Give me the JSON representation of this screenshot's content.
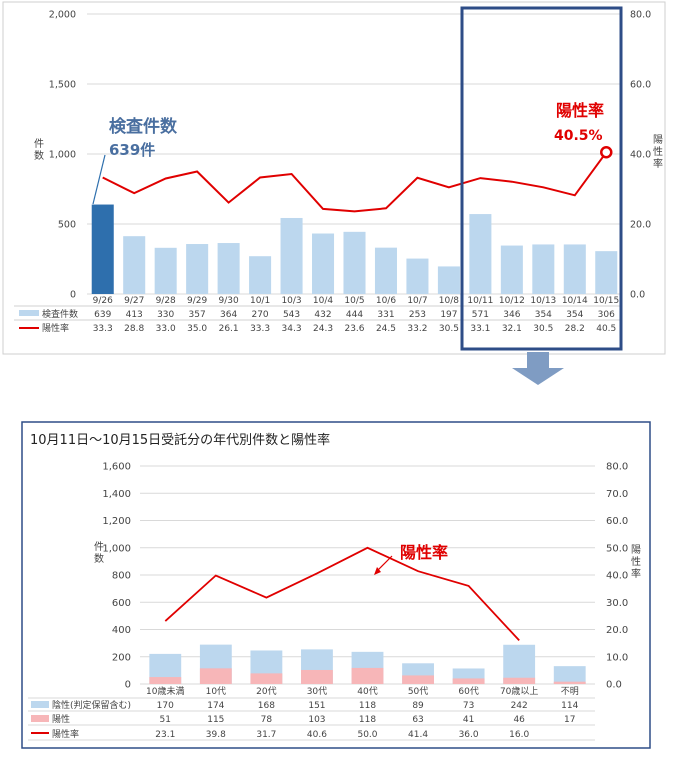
{
  "top": {
    "categories": [
      "9/26",
      "9/27",
      "9/28",
      "9/29",
      "9/30",
      "10/1",
      "10/3",
      "10/4",
      "10/5",
      "10/6",
      "10/7",
      "10/8",
      "10/11",
      "10/12",
      "10/13",
      "10/14",
      "10/15"
    ],
    "yticks_left": [
      "2,000",
      "1,500",
      "1,000",
      "500",
      "0"
    ],
    "yticks_right": [
      "80.0",
      "60.0",
      "40.0",
      "20.0",
      "0.0"
    ],
    "ylabel_left": "件数",
    "ylabel_right": "陽性率",
    "legend_bar": "検査件数",
    "legend_line": "陽性率",
    "row_counts": [
      "639",
      "413",
      "330",
      "357",
      "364",
      "270",
      "543",
      "432",
      "444",
      "331",
      "253",
      "197",
      "571",
      "346",
      "354",
      "354",
      "306"
    ],
    "row_rates": [
      "33.3",
      "28.8",
      "33.0",
      "35.0",
      "26.1",
      "33.3",
      "34.3",
      "24.3",
      "23.6",
      "24.5",
      "33.2",
      "30.5",
      "33.1",
      "32.1",
      "30.5",
      "28.2",
      "40.5"
    ],
    "callout_count_label": "検査件数",
    "callout_count_value": "639件",
    "callout_rate_label": "陽性率",
    "callout_rate_value": "40.5%"
  },
  "bottom": {
    "title": "10月11日～10月15日受託分の年代別件数と陽性率",
    "categories": [
      "10歳未満",
      "10代",
      "20代",
      "30代",
      "40代",
      "50代",
      "60代",
      "70歳以上",
      "不明"
    ],
    "yticks_left": [
      "1,600",
      "1,400",
      "1,200",
      "1,000",
      "800",
      "600",
      "400",
      "200",
      "0"
    ],
    "yticks_right": [
      "80.0",
      "70.0",
      "60.0",
      "50.0",
      "40.0",
      "30.0",
      "20.0",
      "10.0",
      "0.0"
    ],
    "ylabel_left": "件数",
    "ylabel_right": "陽性率",
    "legend_total": "陰性(判定保留含む)",
    "legend_positive": "陽性",
    "legend_rate": "陽性率",
    "row_negative": [
      "170",
      "174",
      "168",
      "151",
      "118",
      "89",
      "73",
      "242",
      "114"
    ],
    "row_positive": [
      "51",
      "115",
      "78",
      "103",
      "118",
      "63",
      "41",
      "46",
      "17"
    ],
    "row_rates": [
      "23.1",
      "39.8",
      "31.7",
      "40.6",
      "50.0",
      "41.4",
      "36.0",
      "16.0",
      ""
    ],
    "callout_rate_label": "陽性率"
  },
  "chart_data": [
    {
      "type": "bar",
      "categories": [
        "9/26",
        "9/27",
        "9/28",
        "9/29",
        "9/30",
        "10/1",
        "10/3",
        "10/4",
        "10/5",
        "10/6",
        "10/7",
        "10/8",
        "10/11",
        "10/12",
        "10/13",
        "10/14",
        "10/15"
      ],
      "series": [
        {
          "name": "検査件数",
          "values": [
            639,
            413,
            330,
            357,
            364,
            270,
            543,
            432,
            444,
            331,
            253,
            197,
            571,
            346,
            354,
            354,
            306
          ]
        },
        {
          "name": "陽性率",
          "values": [
            33.3,
            28.8,
            33.0,
            35.0,
            26.1,
            33.3,
            34.3,
            24.3,
            23.6,
            24.5,
            33.2,
            30.5,
            33.1,
            32.1,
            30.5,
            28.2,
            40.5
          ]
        }
      ],
      "ylim": [
        0,
        2000
      ],
      "y2lim": [
        0,
        80
      ],
      "colors": {
        "bar": "#bcd7ee",
        "highlight_bar": "#2e6fad",
        "line": "#e00000"
      }
    },
    {
      "type": "bar",
      "title": "10月11日～10月15日受託分の年代別件数と陽性率",
      "categories": [
        "10歳未満",
        "10代",
        "20代",
        "30代",
        "40代",
        "50代",
        "60代",
        "70歳以上",
        "不明"
      ],
      "series": [
        {
          "name": "陰性(判定保留含む)",
          "values": [
            170,
            174,
            168,
            151,
            118,
            89,
            73,
            242,
            114
          ]
        },
        {
          "name": "陽性",
          "values": [
            51,
            115,
            78,
            103,
            118,
            63,
            41,
            46,
            17
          ]
        },
        {
          "name": "陽性率",
          "values": [
            23.1,
            39.8,
            31.7,
            40.6,
            50.0,
            41.4,
            36.0,
            16.0,
            null
          ]
        }
      ],
      "ylim": [
        0,
        1600
      ],
      "y2lim": [
        0,
        80
      ],
      "colors": {
        "negative": "#bcd7ee",
        "positive": "#f7b6b8",
        "line": "#e00000",
        "border": "#2e4d87"
      }
    }
  ]
}
